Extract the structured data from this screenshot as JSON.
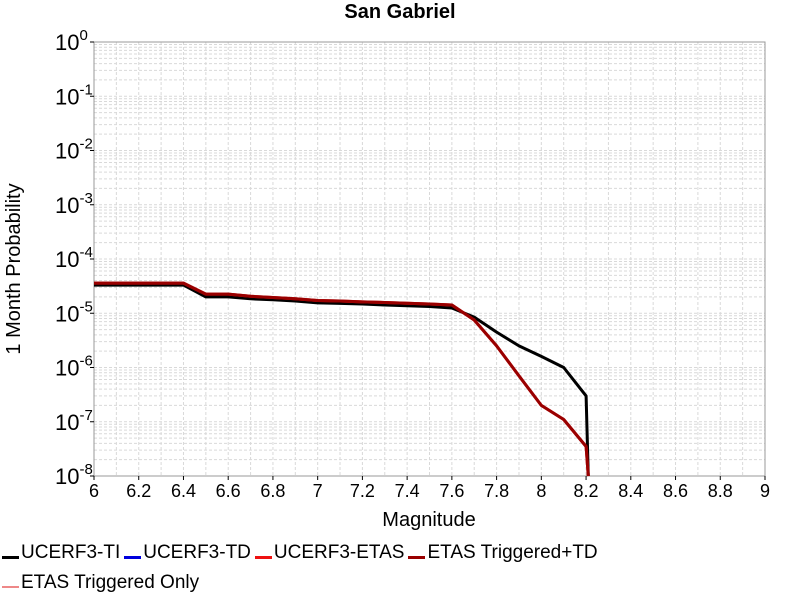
{
  "chart_data": {
    "type": "line",
    "title": "San Gabriel",
    "xlabel": "Magnitude",
    "ylabel": "1 Month Probability",
    "xlim": [
      6,
      9
    ],
    "ylim": [
      1e-08,
      1
    ],
    "yscale": "log",
    "grid": true,
    "legend_position": "bottom",
    "x_ticks": [
      "6",
      "6.2",
      "6.4",
      "6.6",
      "6.8",
      "7",
      "7.2",
      "7.4",
      "7.6",
      "7.8",
      "8",
      "8.2",
      "8.4",
      "8.6",
      "8.8",
      "9"
    ],
    "y_ticks": [
      {
        "base": "10",
        "exp": "0"
      },
      {
        "base": "10",
        "exp": "-1"
      },
      {
        "base": "10",
        "exp": "-2"
      },
      {
        "base": "10",
        "exp": "-3"
      },
      {
        "base": "10",
        "exp": "-4"
      },
      {
        "base": "10",
        "exp": "-5"
      },
      {
        "base": "10",
        "exp": "-6"
      },
      {
        "base": "10",
        "exp": "-7"
      },
      {
        "base": "10",
        "exp": "-8"
      }
    ],
    "series": [
      {
        "name": "UCERF3-TI",
        "color": "#000000",
        "width": 3,
        "drawn": true,
        "x": [
          6.0,
          6.1,
          6.2,
          6.3,
          6.4,
          6.5,
          6.6,
          6.7,
          6.8,
          6.9,
          7.0,
          7.1,
          7.2,
          7.3,
          7.4,
          7.5,
          7.6,
          7.7,
          7.8,
          7.9,
          8.0,
          8.1,
          8.2,
          8.21
        ],
        "y": [
          3.3e-05,
          3.3e-05,
          3.3e-05,
          3.3e-05,
          3.3e-05,
          2e-05,
          2e-05,
          1.85e-05,
          1.78e-05,
          1.68e-05,
          1.55e-05,
          1.52e-05,
          1.48e-05,
          1.42e-05,
          1.38e-05,
          1.33e-05,
          1.25e-05,
          8.5e-06,
          4.5e-06,
          2.5e-06,
          1.6e-06,
          1e-06,
          3e-07,
          1e-08
        ]
      },
      {
        "name": "UCERF3-TD",
        "color": "#0000dd",
        "width": 3,
        "drawn": false,
        "x": [],
        "y": []
      },
      {
        "name": "UCERF3-ETAS",
        "color": "#ee1111",
        "width": 3,
        "drawn": true,
        "x": [
          6.0,
          6.1,
          6.2,
          6.3,
          6.4,
          6.5,
          6.6,
          6.7,
          6.8,
          6.9,
          7.0,
          7.1,
          7.2,
          7.3,
          7.4,
          7.5,
          7.6,
          7.7,
          7.8,
          7.9,
          8.0,
          8.1,
          8.2,
          8.21
        ],
        "y": [
          3.6e-05,
          3.6e-05,
          3.6e-05,
          3.6e-05,
          3.6e-05,
          2.25e-05,
          2.25e-05,
          2.05e-05,
          1.95e-05,
          1.85e-05,
          1.72e-05,
          1.68e-05,
          1.62e-05,
          1.58e-05,
          1.53e-05,
          1.48e-05,
          1.42e-05,
          7.5e-06,
          2.5e-06,
          7e-07,
          2e-07,
          1.1e-07,
          3.5e-08,
          1e-08
        ]
      },
      {
        "name": "ETAS Triggered+TD",
        "color": "#990000",
        "width": 3,
        "drawn": true,
        "x": [
          6.0,
          6.1,
          6.2,
          6.3,
          6.4,
          6.5,
          6.6,
          6.7,
          6.8,
          6.9,
          7.0,
          7.1,
          7.2,
          7.3,
          7.4,
          7.5,
          7.6,
          7.7,
          7.8,
          7.9,
          8.0,
          8.1,
          8.2,
          8.21
        ],
        "y": [
          3.6e-05,
          3.6e-05,
          3.6e-05,
          3.6e-05,
          3.6e-05,
          2.25e-05,
          2.25e-05,
          2.05e-05,
          1.95e-05,
          1.85e-05,
          1.72e-05,
          1.68e-05,
          1.62e-05,
          1.58e-05,
          1.53e-05,
          1.48e-05,
          1.42e-05,
          7.5e-06,
          2.5e-06,
          7e-07,
          2e-07,
          1.1e-07,
          3.5e-08,
          1e-08
        ]
      },
      {
        "name": "ETAS Triggered Only",
        "color": "#ee8888",
        "width": 1,
        "drawn": false,
        "x": [],
        "y": []
      }
    ]
  }
}
